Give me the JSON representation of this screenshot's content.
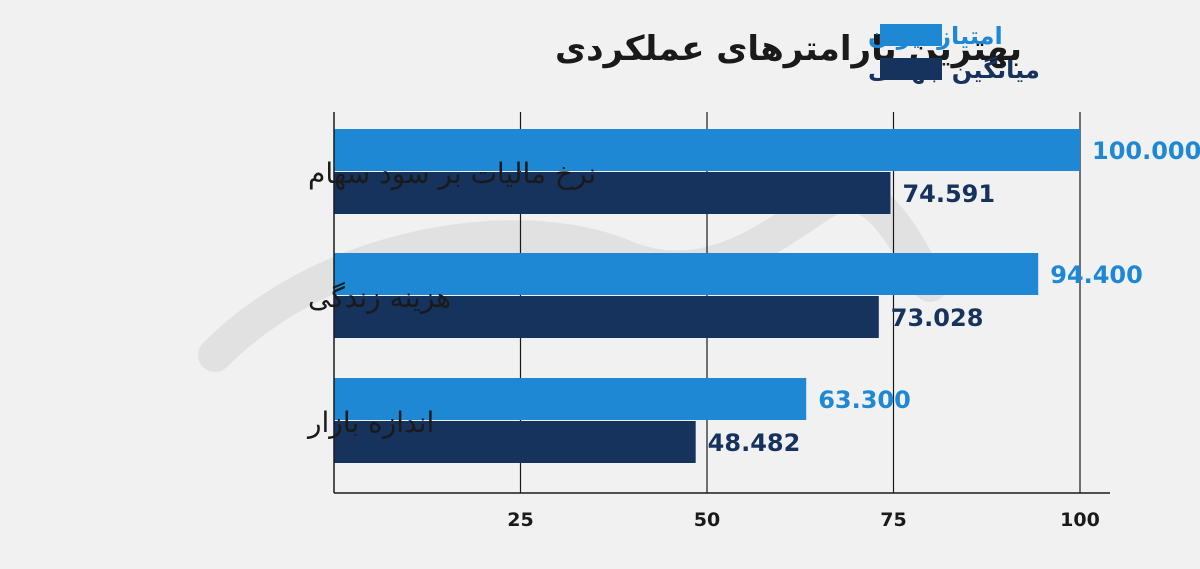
{
  "chart_data": {
    "type": "bar",
    "orientation": "horizontal",
    "title": "بهترین پارامترهای عملکردی",
    "categories": [
      "نرخ مالیات بر سود سهام",
      "هزینه زندگی",
      "اندازه بازار"
    ],
    "series": [
      {
        "name": "امتیاز ایران",
        "values": [
          100.0,
          94.4,
          63.3
        ],
        "labels": [
          "100.000",
          "94.400",
          "63.300"
        ],
        "color": "#1e88d4"
      },
      {
        "name": "میانگین جهانی",
        "values": [
          74.591,
          73.028,
          48.482
        ],
        "labels": [
          "74.591",
          "73.028",
          "48.482"
        ],
        "color": "#16335e"
      }
    ],
    "xticks": [
      "25",
      "50",
      "75",
      "100"
    ],
    "xtick_values": [
      25,
      50,
      75,
      100
    ],
    "xlim": [
      0,
      104
    ],
    "grid": true,
    "legend_position": "top-right",
    "colors": {
      "axis": "#1a1a1a",
      "grid": "#1a1a1a"
    }
  }
}
